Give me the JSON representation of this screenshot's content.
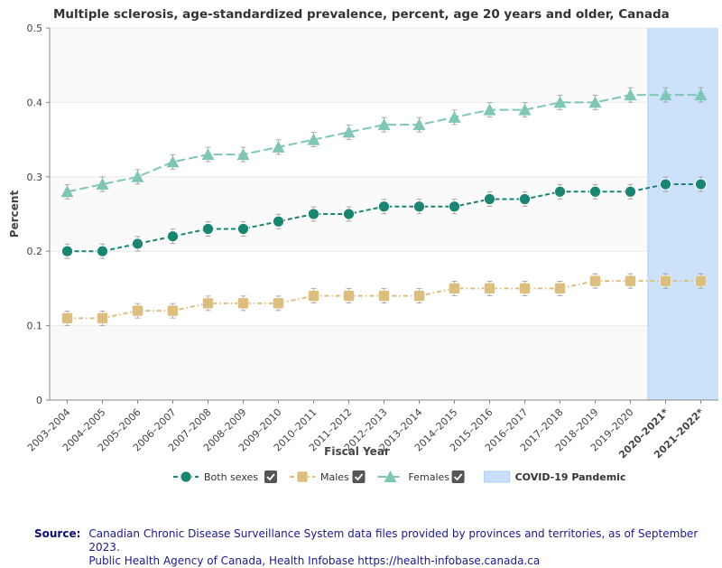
{
  "chart_data": {
    "type": "line",
    "title": "Multiple sclerosis, age-standardized prevalence, percent, age 20 years and older, Canada",
    "xlabel": "Fiscal Year",
    "ylabel": "Percent",
    "ylim": [
      0,
      0.5
    ],
    "yticks": [
      "0",
      "0.1",
      "0.2",
      "0.3",
      "0.4",
      "0.5"
    ],
    "categories": [
      "2003–2004",
      "2004–2005",
      "2005–2006",
      "2006–2007",
      "2007–2008",
      "2008–2009",
      "2009–2010",
      "2010–2011",
      "2011–2012",
      "2012–2013",
      "2013–2014",
      "2014–2015",
      "2015–2016",
      "2016–2017",
      "2017–2018",
      "2018–2019",
      "2019–2020",
      "2020–2021*",
      "2021–2022*"
    ],
    "bold_categories": [
      17,
      18
    ],
    "series": [
      {
        "name": "Both sexes",
        "color": "#1a8572",
        "marker": "circle",
        "values": [
          0.2,
          0.2,
          0.21,
          0.22,
          0.23,
          0.23,
          0.24,
          0.25,
          0.25,
          0.26,
          0.26,
          0.26,
          0.27,
          0.27,
          0.28,
          0.28,
          0.28,
          0.29,
          0.29
        ]
      },
      {
        "name": "Males",
        "color": "#dcbf7e",
        "marker": "square",
        "values": [
          0.11,
          0.11,
          0.12,
          0.12,
          0.13,
          0.13,
          0.13,
          0.14,
          0.14,
          0.14,
          0.14,
          0.15,
          0.15,
          0.15,
          0.15,
          0.16,
          0.16,
          0.16,
          0.16
        ]
      },
      {
        "name": "Females",
        "color": "#7fc6b6",
        "marker": "triangle",
        "values": [
          0.28,
          0.29,
          0.3,
          0.32,
          0.33,
          0.33,
          0.34,
          0.35,
          0.36,
          0.37,
          0.37,
          0.38,
          0.39,
          0.39,
          0.4,
          0.4,
          0.41,
          0.41,
          0.41
        ]
      }
    ],
    "shaded_region": {
      "label": "COVID-19 Pandemic",
      "from_category": 17,
      "to_category": 18,
      "color": "#c9e0fb"
    },
    "grid": true,
    "legend_placement": "bottom-center"
  },
  "source": {
    "label": "Source:",
    "line1": "Canadian Chronic Disease Surveillance System data files provided by provinces and territories, as of September 2023.",
    "line2": "Public Health Agency of Canada, Health Infobase https://health-infobase.canada.ca"
  }
}
